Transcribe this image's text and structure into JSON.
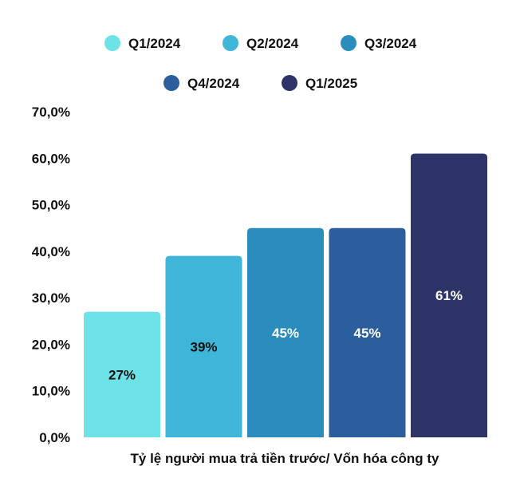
{
  "chart_data": {
    "type": "bar",
    "title": "",
    "xlabel": "Tỷ lệ người mua trả tiền trước/ Vốn hóa công ty",
    "ylabel": "",
    "ylim": [
      0,
      70
    ],
    "y_ticks": [
      {
        "value": 0,
        "label": "0,0%"
      },
      {
        "value": 10,
        "label": "10,0%"
      },
      {
        "value": 20,
        "label": "20,0%"
      },
      {
        "value": 30,
        "label": "30,0%"
      },
      {
        "value": 40,
        "label": "40,0%"
      },
      {
        "value": 50,
        "label": "50,0%"
      },
      {
        "value": 60,
        "label": "60,0%"
      },
      {
        "value": 70,
        "label": "70,0%"
      }
    ],
    "grid": false,
    "legend": "top-center",
    "series": [
      {
        "name": "Q1/2024",
        "value": 27,
        "label": "27%",
        "color": "#6de3e8",
        "label_color": "#111111"
      },
      {
        "name": "Q2/2024",
        "value": 39,
        "label": "39%",
        "color": "#3fb6d9",
        "label_color": "#111111"
      },
      {
        "name": "Q3/2024",
        "value": 45,
        "label": "45%",
        "color": "#2b8cbe",
        "label_color": "#ffffff"
      },
      {
        "name": "Q4/2024",
        "value": 45,
        "label": "45%",
        "color": "#2c5d9c",
        "label_color": "#ffffff"
      },
      {
        "name": "Q1/2025",
        "value": 61,
        "label": "61%",
        "color": "#2e3468",
        "label_color": "#ffffff"
      }
    ]
  }
}
